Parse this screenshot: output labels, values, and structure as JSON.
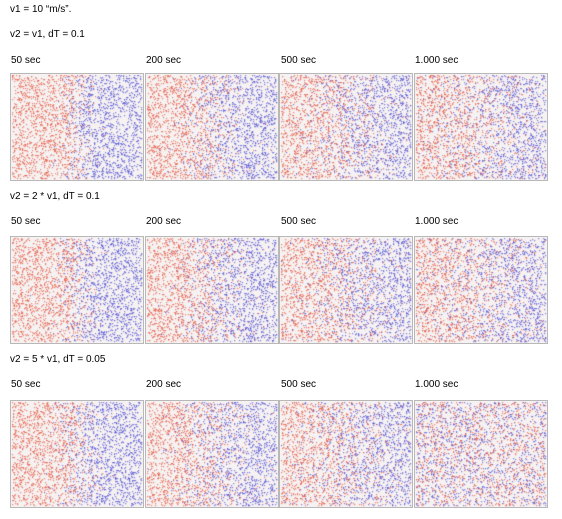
{
  "intro": "v1 = 10 “m/s”.",
  "sections": [
    {
      "heading": "v2 = v1, dT = 0.1",
      "panels": [
        {
          "label": "50 sec",
          "mix": 0.2
        },
        {
          "label": "200 sec",
          "mix": 0.45
        },
        {
          "label": "500 sec",
          "mix": 0.75
        },
        {
          "label": "1.000 sec",
          "mix": 0.9
        }
      ]
    },
    {
      "heading": "v2 = 2 * v1, dT = 0.1",
      "panels": [
        {
          "label": "50 sec",
          "mix": 0.25
        },
        {
          "label": "200 sec",
          "mix": 0.5
        },
        {
          "label": "500 sec",
          "mix": 0.8
        },
        {
          "label": "1.000 sec",
          "mix": 0.95
        }
      ]
    },
    {
      "heading": "v2 = 5 * v1, dT = 0.05",
      "panels": [
        {
          "label": "50 sec",
          "mix": 0.3
        },
        {
          "label": "200 sec",
          "mix": 0.6
        },
        {
          "label": "500 sec",
          "mix": 0.9
        },
        {
          "label": "1.000 sec",
          "mix": 1.0
        }
      ]
    }
  ],
  "colors": {
    "left_particles": "#e8604a",
    "right_particles": "#5a5ad8",
    "background": "#f6f2f2"
  }
}
